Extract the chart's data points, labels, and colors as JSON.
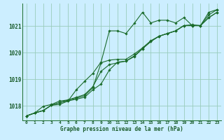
{
  "title": "Graphe pression niveau de la mer (hPa)",
  "background_color": "#cceeff",
  "plot_bg_color": "#cceeff",
  "grid_color": "#99ccbb",
  "line_color": "#1a6b2a",
  "text_color": "#1a5c2a",
  "xlim": [
    -0.5,
    23.5
  ],
  "ylim": [
    1017.45,
    1021.85
  ],
  "yticks": [
    1018,
    1019,
    1020,
    1021
  ],
  "xticks": [
    0,
    1,
    2,
    3,
    4,
    5,
    6,
    7,
    8,
    9,
    10,
    11,
    12,
    13,
    14,
    15,
    16,
    17,
    18,
    19,
    20,
    21,
    22,
    23
  ],
  "series": [
    [
      1017.62,
      1017.73,
      1017.82,
      1018.02,
      1018.12,
      1018.22,
      1018.32,
      1018.42,
      1018.72,
      1019.3,
      1019.55,
      1019.62,
      1019.68,
      1019.85,
      1020.15,
      1020.42,
      1020.62,
      1020.72,
      1020.82,
      1021.02,
      1021.02,
      1021.02,
      1021.32,
      1021.52
    ],
    [
      1017.62,
      1017.73,
      1017.82,
      1018.02,
      1018.12,
      1018.18,
      1018.25,
      1018.32,
      1018.6,
      1018.82,
      1019.35,
      1019.65,
      1019.68,
      1019.88,
      1020.15,
      1020.42,
      1020.62,
      1020.72,
      1020.82,
      1021.02,
      1021.02,
      1021.02,
      1021.32,
      1021.52
    ],
    [
      1017.62,
      1017.73,
      1017.98,
      1018.05,
      1018.18,
      1018.22,
      1018.28,
      1018.38,
      1018.68,
      1019.62,
      1019.72,
      1019.75,
      1019.75,
      1019.95,
      1020.18,
      1020.45,
      1020.62,
      1020.72,
      1020.82,
      1021.02,
      1021.05,
      1021.02,
      1021.42,
      1021.62
    ],
    [
      1017.62,
      1017.73,
      1017.82,
      1018.02,
      1018.05,
      1018.18,
      1018.6,
      1018.92,
      1019.22,
      1019.65,
      1020.82,
      1020.82,
      1020.72,
      1021.1,
      1021.52,
      1021.12,
      1021.22,
      1021.22,
      1021.12,
      1021.32,
      1021.02,
      1021.02,
      1021.52,
      1021.62
    ]
  ]
}
